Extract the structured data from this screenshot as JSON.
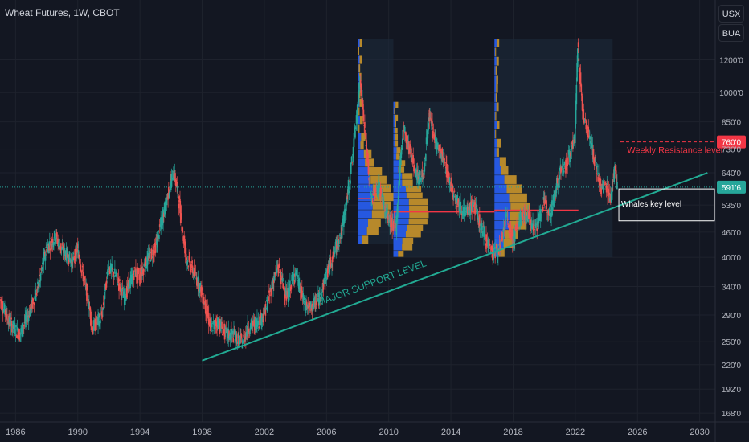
{
  "header": {
    "symbol_title": "Wheat Futures, 1W, CBOT",
    "unit_primary": "USX",
    "unit_secondary": "BUA"
  },
  "colors": {
    "background": "#131722",
    "grid": "#1e222d",
    "axis_text": "#b2b5be",
    "bull_candle": "#26a69a",
    "bear_candle": "#ef5350",
    "support_line": "#22ab94",
    "resistance": "#f23645",
    "current_price": "#26a69a",
    "profile_box": "#1c2a3a",
    "volume_buy": "#2962ff",
    "volume_sell": "#d39b2a",
    "poc_line": "#f23645"
  },
  "chart_data": {
    "type": "candlestick",
    "title": "Wheat Futures, 1W, CBOT",
    "y_scale": "log",
    "ylim": [
      160,
      1400
    ],
    "xlim": [
      1985,
      2031
    ],
    "x_ticks": [
      "1986",
      "1990",
      "1994",
      "1998",
      "2002",
      "2006",
      "2010",
      "2014",
      "2018",
      "2022",
      "2026",
      "2030"
    ],
    "x_tick_years": [
      1986,
      1990,
      1994,
      1998,
      2002,
      2006,
      2010,
      2014,
      2018,
      2022,
      2026,
      2030
    ],
    "y_ticks": [
      "1200'0",
      "1000'0",
      "850'0",
      "730'0",
      "640'0",
      "535'0",
      "460'0",
      "400'0",
      "340'0",
      "290'0",
      "250'0",
      "220'0",
      "192'0",
      "168'0"
    ],
    "y_tick_values": [
      1200,
      1000,
      850,
      730,
      640,
      535,
      460,
      400,
      340,
      290,
      250,
      220,
      192,
      168
    ],
    "price_path": [
      [
        1985.0,
        320
      ],
      [
        1985.6,
        280
      ],
      [
        1986.3,
        260
      ],
      [
        1987.0,
        300
      ],
      [
        1987.5,
        340
      ],
      [
        1988.0,
        420
      ],
      [
        1988.6,
        450
      ],
      [
        1989.0,
        420
      ],
      [
        1989.7,
        390
      ],
      [
        1990.0,
        420
      ],
      [
        1990.6,
        330
      ],
      [
        1991.0,
        270
      ],
      [
        1991.6,
        290
      ],
      [
        1992.0,
        380
      ],
      [
        1992.5,
        360
      ],
      [
        1993.0,
        320
      ],
      [
        1993.7,
        370
      ],
      [
        1994.0,
        360
      ],
      [
        1994.6,
        400
      ],
      [
        1995.0,
        420
      ],
      [
        1995.6,
        520
      ],
      [
        1996.2,
        650
      ],
      [
        1996.5,
        560
      ],
      [
        1997.0,
        400
      ],
      [
        1997.6,
        360
      ],
      [
        1998.0,
        330
      ],
      [
        1998.6,
        270
      ],
      [
        1999.0,
        280
      ],
      [
        1999.6,
        260
      ],
      [
        2000.0,
        260
      ],
      [
        2000.6,
        250
      ],
      [
        2001.0,
        270
      ],
      [
        2001.6,
        280
      ],
      [
        2002.0,
        290
      ],
      [
        2002.5,
        340
      ],
      [
        2002.9,
        380
      ],
      [
        2003.5,
        320
      ],
      [
        2004.0,
        370
      ],
      [
        2004.6,
        310
      ],
      [
        2005.0,
        300
      ],
      [
        2005.6,
        320
      ],
      [
        2006.0,
        360
      ],
      [
        2006.6,
        420
      ],
      [
        2007.0,
        460
      ],
      [
        2007.5,
        600
      ],
      [
        2008.0,
        900
      ],
      [
        2008.2,
        1100
      ],
      [
        2008.5,
        800
      ],
      [
        2008.9,
        550
      ],
      [
        2009.4,
        600
      ],
      [
        2009.9,
        500
      ],
      [
        2010.5,
        470
      ],
      [
        2010.8,
        700
      ],
      [
        2011.0,
        820
      ],
      [
        2011.5,
        700
      ],
      [
        2011.9,
        620
      ],
      [
        2012.3,
        640
      ],
      [
        2012.6,
        880
      ],
      [
        2013.0,
        770
      ],
      [
        2013.6,
        680
      ],
      [
        2014.0,
        600
      ],
      [
        2014.5,
        540
      ],
      [
        2015.0,
        510
      ],
      [
        2015.5,
        540
      ],
      [
        2016.0,
        470
      ],
      [
        2016.7,
        410
      ],
      [
        2017.2,
        420
      ],
      [
        2017.6,
        500
      ],
      [
        2018.0,
        440
      ],
      [
        2018.6,
        510
      ],
      [
        2019.0,
        500
      ],
      [
        2019.5,
        470
      ],
      [
        2020.0,
        540
      ],
      [
        2020.5,
        520
      ],
      [
        2021.0,
        640
      ],
      [
        2021.5,
        680
      ],
      [
        2022.0,
        780
      ],
      [
        2022.2,
        1300
      ],
      [
        2022.5,
        900
      ],
      [
        2022.9,
        800
      ],
      [
        2023.3,
        680
      ],
      [
        2023.7,
        580
      ],
      [
        2024.0,
        600
      ],
      [
        2024.3,
        550
      ],
      [
        2024.6,
        680
      ],
      [
        2024.7,
        591
      ]
    ],
    "volume_profiles": [
      {
        "from": 2008.0,
        "to": 2010.3,
        "low": 430,
        "high": 1350,
        "poc": 555,
        "poc_end": 2009.2
      },
      {
        "from": 2010.3,
        "to": 2016.8,
        "low": 400,
        "high": 950,
        "poc": 515,
        "poc_end": 2017.0
      },
      {
        "from": 2016.8,
        "to": 2024.4,
        "low": 400,
        "high": 1350,
        "poc": 520,
        "poc_end": 2022.2
      }
    ],
    "support_line": {
      "from": [
        1998.0,
        225
      ],
      "to": [
        2030.5,
        640
      ],
      "label": "MAJOR SUPPORT LEVEL"
    },
    "resistance_line": {
      "price": 760,
      "label": "Weekly Resistance level",
      "tag": "760'0"
    },
    "current_price": {
      "value": 591,
      "tag": "591'6"
    },
    "key_zone": {
      "top": 585,
      "bottom": 490,
      "label": "Whales key level"
    }
  }
}
